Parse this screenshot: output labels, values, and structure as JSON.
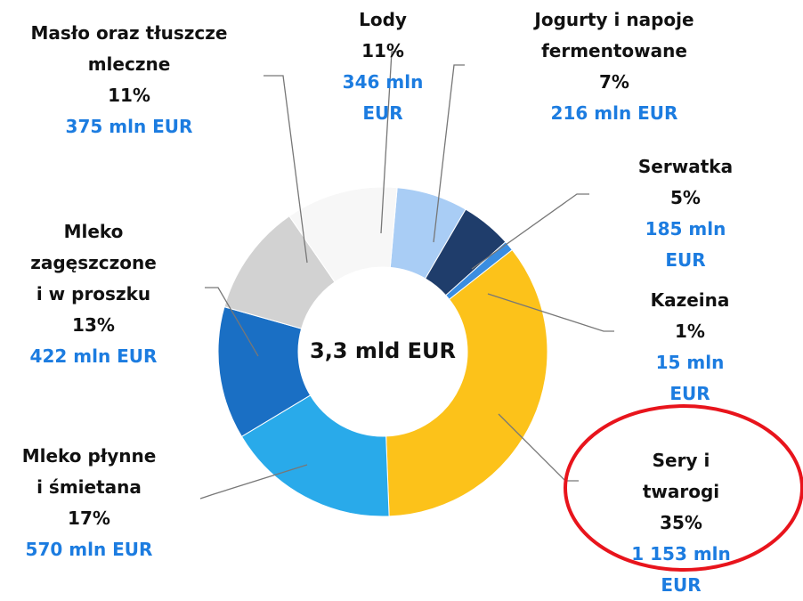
{
  "chart_data": {
    "type": "pie",
    "center_label": "3,3 mld EUR",
    "categories": [
      "Jogurty i napoje\nfermentowane",
      "Serwatka",
      "Kazeina",
      "Sery i twarogi",
      "Mleko płynne\ni śmietana",
      "Mleko\nzagęszczone\ni w proszku",
      "Masło oraz tłuszcze\nmleczne",
      "Lody"
    ],
    "values": [
      7,
      5,
      1,
      35,
      17,
      13,
      11,
      11
    ],
    "value_labels": [
      "7%",
      "5%",
      "1%",
      "35%",
      "17%",
      "13%",
      "11%",
      "11%"
    ],
    "amounts": [
      216,
      185,
      15,
      1153,
      570,
      422,
      375,
      346
    ],
    "amount_labels": [
      "216 mln EUR",
      "185 mln EUR",
      "15 mln EUR",
      "1 153 mln EUR",
      "570 mln EUR",
      "422 mln EUR",
      "375 mln EUR",
      "346 mln EUR"
    ],
    "colors": [
      "#a9cdf5",
      "#1f3d6b",
      "#3a8de0",
      "#fcc21a",
      "#29aaea",
      "#1a6fc4",
      "#d2d2d2",
      "#f7f7f7"
    ]
  }
}
